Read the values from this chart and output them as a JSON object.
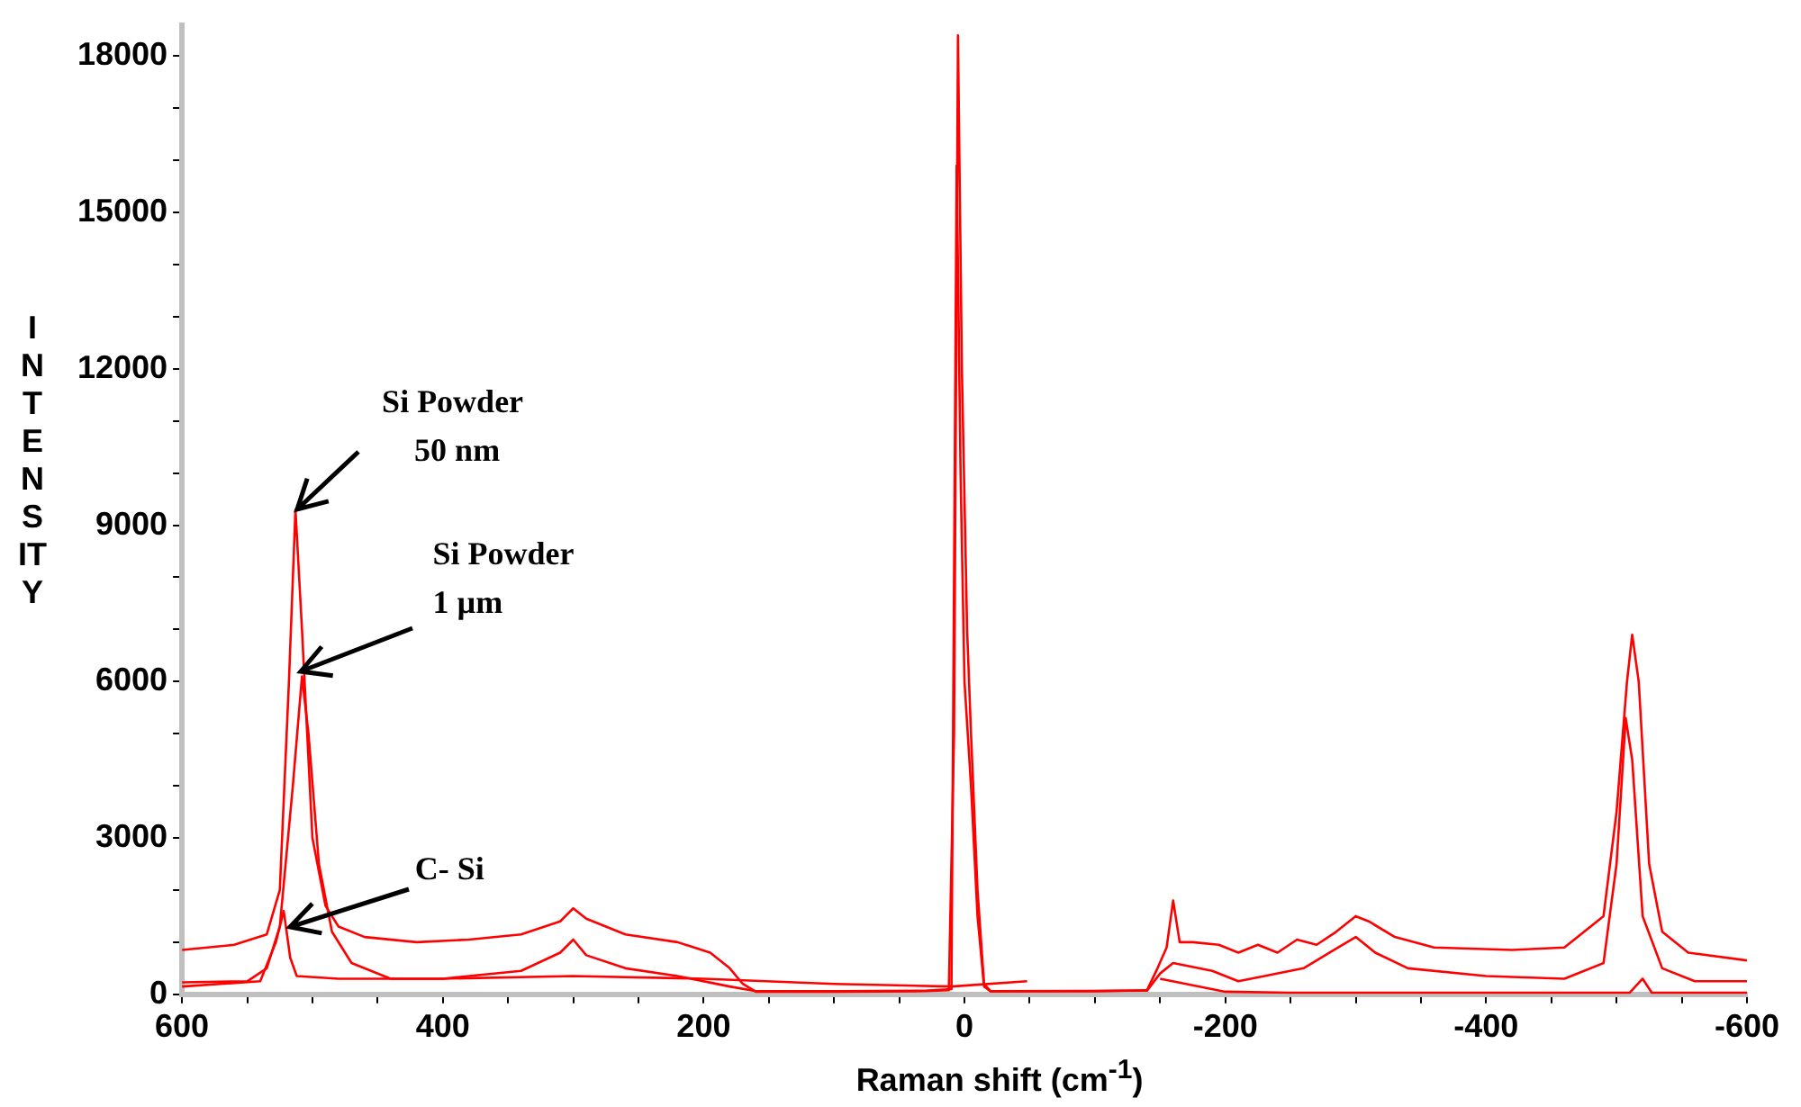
{
  "chart_data": {
    "type": "line",
    "xlabel": "Raman shift (cm$^{-1}$)",
    "ylabel": "INTENSITY",
    "xlim": [
      600,
      -600
    ],
    "ylim": [
      0,
      18600
    ],
    "xticks": [
      600,
      {
        "value": 550,
        "label": null
      },
      400,
      {
        "value": 500,
        "label": null
      },
      {
        "value": 450,
        "label": null
      },
      {
        "value": 350,
        "label": null
      },
      200,
      {
        "value": 300,
        "label": null
      },
      {
        "value": 250,
        "label": null
      },
      {
        "value": 150,
        "label": null
      },
      0,
      {
        "value": 100,
        "label": null
      },
      {
        "value": 50,
        "label": null
      },
      {
        "value": -50,
        "label": null
      },
      -200,
      {
        "value": -100,
        "label": null
      },
      {
        "value": -150,
        "label": null
      },
      {
        "value": -250,
        "label": null
      },
      -400,
      {
        "value": -300,
        "label": null
      },
      {
        "value": -350,
        "label": null
      },
      {
        "value": -450,
        "label": null
      },
      -600,
      {
        "value": -500,
        "label": null
      },
      {
        "value": -550,
        "label": null
      }
    ],
    "yticks": [
      0,
      {
        "value": 1000,
        "label": null
      },
      {
        "value": 2000,
        "label": null
      },
      3000,
      {
        "value": 4000,
        "label": null
      },
      {
        "value": 5000,
        "label": null
      },
      6000,
      {
        "value": 7000,
        "label": null
      },
      {
        "value": 8000,
        "label": null
      },
      9000,
      {
        "value": 10000,
        "label": null
      },
      {
        "value": 11000,
        "label": null
      },
      12000,
      {
        "value": 13000,
        "label": null
      },
      {
        "value": 14000,
        "label": null
      },
      15000,
      {
        "value": 16000,
        "label": null
      },
      {
        "value": 17000,
        "label": null
      },
      18000
    ],
    "grid": false,
    "legend": false,
    "series": [
      {
        "color": "#ff0000",
        "x": [
          600,
          560,
          535,
          525,
          518,
          513,
          508,
          500,
          490,
          480,
          460,
          420,
          380,
          340,
          310,
          300,
          290,
          260,
          220,
          195,
          180,
          170,
          160,
          100,
          30,
          12,
          8,
          5,
          2,
          -2,
          -5,
          -10,
          -15,
          -20,
          -100,
          -140,
          -148,
          -155,
          -160,
          -165,
          -175,
          -195,
          -210,
          -225,
          -240,
          -255,
          -270,
          -285,
          -300,
          -310,
          -330,
          -360,
          -420,
          -460,
          -490,
          -500,
          -508,
          -512,
          -517,
          -525,
          -535,
          -555,
          -600
        ],
        "values": [
          850,
          950,
          1150,
          2000,
          6000,
          9300,
          7000,
          3000,
          1700,
          1300,
          1100,
          1000,
          1050,
          1150,
          1400,
          1650,
          1450,
          1150,
          1000,
          800,
          500,
          200,
          50,
          50,
          60,
          80,
          5000,
          18400,
          12000,
          7000,
          5000,
          2000,
          200,
          60,
          60,
          80,
          500,
          900,
          1800,
          1000,
          1000,
          950,
          800,
          950,
          800,
          1050,
          950,
          1200,
          1500,
          1400,
          1100,
          900,
          850,
          900,
          1500,
          3500,
          6000,
          6900,
          6000,
          2500,
          1200,
          800,
          650
        ]
      },
      {
        "color": "#ff0000",
        "x": [
          600,
          550,
          535,
          525,
          515,
          508,
          503,
          495,
          485,
          470,
          440,
          400,
          340,
          310,
          300,
          290,
          260,
          220,
          180,
          160,
          100,
          30,
          10,
          6,
          3,
          0,
          -5,
          -10,
          -15,
          -20,
          -140,
          -150,
          -160,
          -190,
          -210,
          -230,
          -260,
          -280,
          -300,
          -315,
          -340,
          -400,
          -460,
          -490,
          -500,
          -507,
          -512,
          -520,
          -535,
          -560,
          -600
        ],
        "values": [
          230,
          250,
          500,
          1300,
          4000,
          6100,
          5000,
          2500,
          1200,
          600,
          300,
          300,
          450,
          800,
          1050,
          750,
          500,
          350,
          150,
          60,
          60,
          70,
          100,
          15900,
          10000,
          6000,
          4000,
          1500,
          150,
          60,
          70,
          400,
          600,
          450,
          250,
          350,
          500,
          800,
          1100,
          800,
          500,
          350,
          300,
          600,
          2500,
          5300,
          4500,
          1500,
          500,
          250,
          250
        ]
      },
      {
        "color": "#ff0000",
        "x": [
          600,
          540,
          528,
          522,
          517,
          512,
          480,
          400,
          300,
          200,
          100,
          10,
          -48,
          -60,
          -150,
          -200,
          -250,
          -510,
          -520,
          -527,
          -600
        ],
        "values": [
          150,
          250,
          1000,
          1600,
          700,
          350,
          300,
          300,
          350,
          300,
          200,
          150,
          250,
          null,
          300,
          50,
          30,
          30,
          300,
          30,
          30
        ]
      }
    ],
    "annotations": [
      {
        "text": "Si Powder\n50 nm",
        "x": 513,
        "y": 9300
      },
      {
        "text": "Si Powder\n1 µm",
        "x": 510,
        "y": 6200
      },
      {
        "text": "C- Si",
        "x": 518,
        "y": 1300
      }
    ]
  }
}
